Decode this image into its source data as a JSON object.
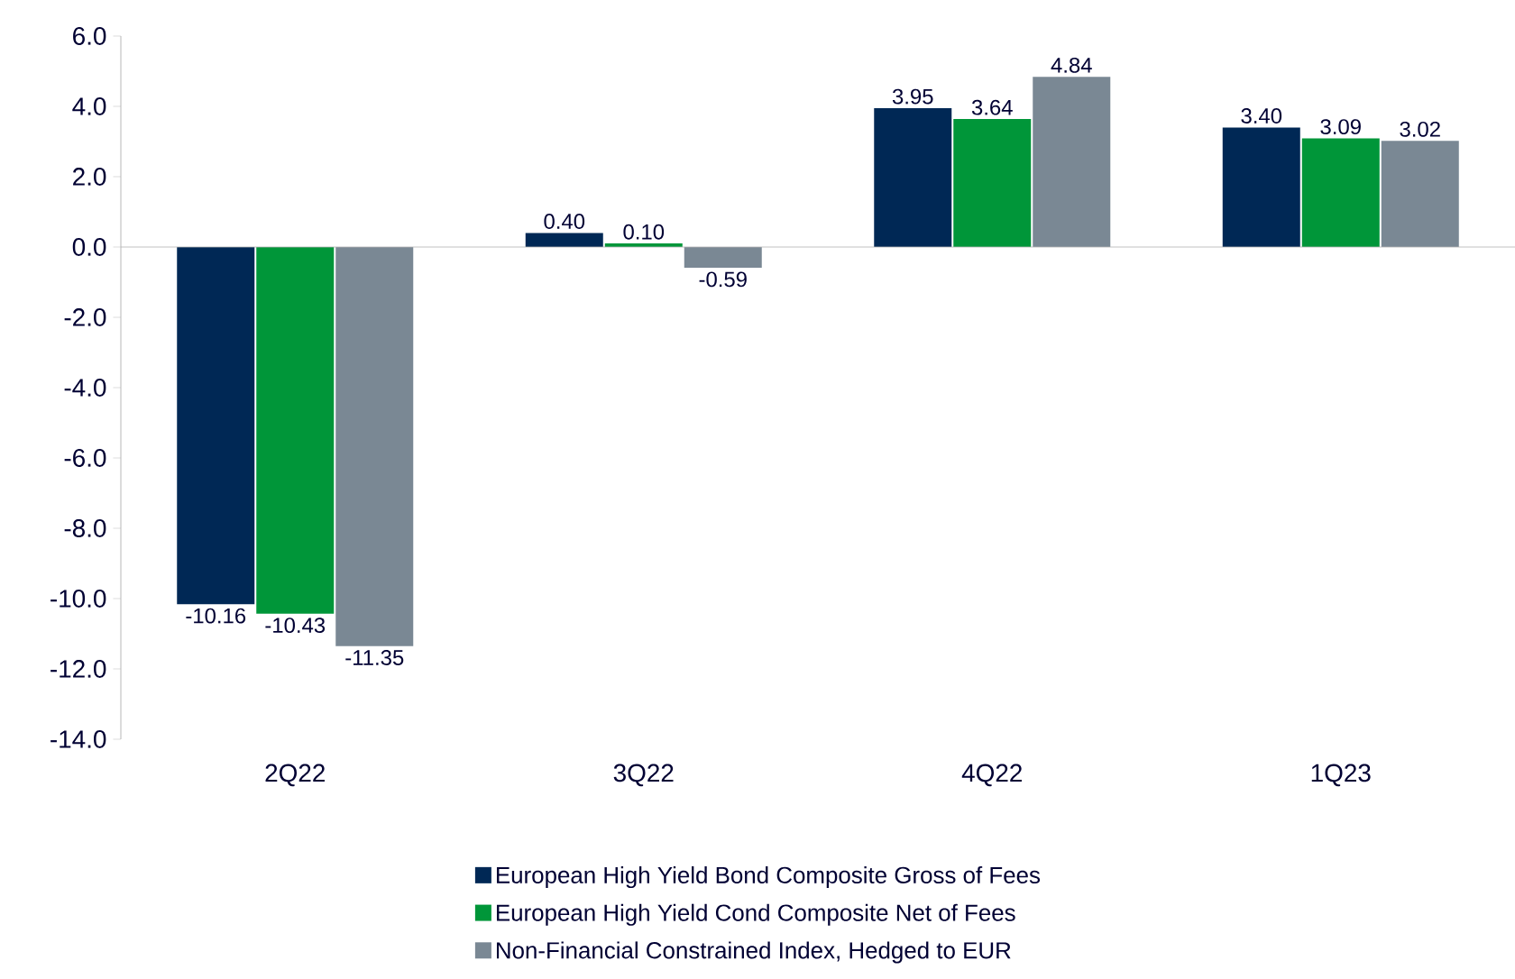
{
  "chart_data": {
    "type": "bar",
    "categories": [
      "2Q22",
      "3Q22",
      "4Q22",
      "1Q23"
    ],
    "series": [
      {
        "name": "European High Yield Bond Composite Gross of Fees",
        "color": "#002855",
        "values": [
          -10.16,
          0.4,
          3.95,
          3.4
        ],
        "value_labels": [
          "-10.16",
          "0.40",
          "3.95",
          "3.40"
        ]
      },
      {
        "name": "European High Yield Cond Composite Net of Fees",
        "color": "#009639",
        "values": [
          -10.43,
          0.1,
          3.64,
          3.09
        ],
        "value_labels": [
          "-10.43",
          "0.10",
          "3.64",
          "3.09"
        ]
      },
      {
        "name": "Non-Financial Constrained Index, Hedged to EUR",
        "color": "#7a8894",
        "values": [
          -11.35,
          -0.59,
          4.84,
          3.02
        ],
        "value_labels": [
          "-11.35",
          "-0.59",
          "4.84",
          "3.02"
        ]
      }
    ],
    "ylim": [
      -14,
      6
    ],
    "yticks": [
      {
        "value": -14,
        "label": "-14.0"
      },
      {
        "value": -12,
        "label": "-12.0"
      },
      {
        "value": -10,
        "label": "-10.0"
      },
      {
        "value": -8,
        "label": "-8.0"
      },
      {
        "value": -6,
        "label": "-6.0"
      },
      {
        "value": -4,
        "label": "-4.0"
      },
      {
        "value": -2,
        "label": "-2.0"
      },
      {
        "value": 0,
        "label": "0.0"
      },
      {
        "value": 2,
        "label": "2.0"
      },
      {
        "value": 4,
        "label": "4.0"
      },
      {
        "value": 6,
        "label": "6.0"
      }
    ],
    "ref_lines": [
      {
        "axis": "y",
        "value": 0,
        "color": "#b3b3b3"
      }
    ],
    "grid": false,
    "legend": "bottom"
  }
}
